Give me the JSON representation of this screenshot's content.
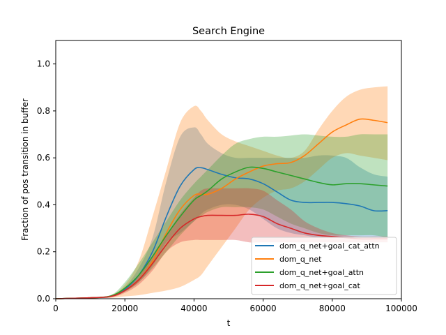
{
  "chart_data": {
    "type": "line",
    "title": "Search Engine",
    "xlabel": "t",
    "ylabel": "Fraction of pos transition in buffer",
    "xlim": [
      0,
      100000
    ],
    "ylim": [
      0,
      1.1
    ],
    "xticks": [
      0,
      20000,
      40000,
      60000,
      80000,
      100000
    ],
    "xtick_labels": [
      "0",
      "20000",
      "40000",
      "60000",
      "80000",
      "100000"
    ],
    "yticks": [
      0.0,
      0.2,
      0.4,
      0.6,
      0.8,
      1.0
    ],
    "ytick_labels": [
      "0.0",
      "0.2",
      "0.4",
      "0.6",
      "0.8",
      "1.0"
    ],
    "grid": false,
    "legend_position": "lower-right",
    "x": [
      0,
      10000,
      16000,
      20000,
      24000,
      28000,
      32000,
      36000,
      40000,
      42000,
      44000,
      48000,
      52000,
      56000,
      60000,
      64000,
      68000,
      72000,
      76000,
      80000,
      84000,
      88000,
      92000,
      96000
    ],
    "series": [
      {
        "name": "dom_q_net+goal_cat_attn",
        "color": "#1f77b4",
        "values": [
          0,
          0.004,
          0.01,
          0.04,
          0.1,
          0.2,
          0.35,
          0.48,
          0.55,
          0.558,
          0.55,
          0.53,
          0.515,
          0.51,
          0.49,
          0.455,
          0.42,
          0.41,
          0.41,
          0.41,
          0.405,
          0.395,
          0.375,
          0.375
        ],
        "lower": [
          0,
          0.002,
          0.006,
          0.03,
          0.07,
          0.14,
          0.24,
          0.28,
          0.33,
          0.36,
          0.38,
          0.4,
          0.4,
          0.38,
          0.34,
          0.3,
          0.28,
          0.27,
          0.26,
          0.26,
          0.26,
          0.26,
          0.26,
          0.26
        ],
        "upper": [
          0,
          0.006,
          0.014,
          0.05,
          0.13,
          0.26,
          0.5,
          0.69,
          0.73,
          0.7,
          0.66,
          0.62,
          0.6,
          0.6,
          0.6,
          0.6,
          0.6,
          0.6,
          0.61,
          0.61,
          0.6,
          0.56,
          0.53,
          0.52
        ]
      },
      {
        "name": "dom_q_net",
        "color": "#ff7f0e",
        "values": [
          0,
          0.004,
          0.01,
          0.035,
          0.08,
          0.16,
          0.28,
          0.38,
          0.44,
          0.445,
          0.445,
          0.47,
          0.51,
          0.54,
          0.565,
          0.575,
          0.58,
          0.61,
          0.66,
          0.71,
          0.74,
          0.765,
          0.76,
          0.75
        ],
        "lower": [
          0,
          0.002,
          0.004,
          0.01,
          0.015,
          0.025,
          0.035,
          0.05,
          0.08,
          0.1,
          0.14,
          0.22,
          0.3,
          0.38,
          0.43,
          0.46,
          0.47,
          0.5,
          0.55,
          0.6,
          0.62,
          0.61,
          0.6,
          0.59
        ],
        "upper": [
          0,
          0.006,
          0.015,
          0.06,
          0.16,
          0.35,
          0.55,
          0.75,
          0.82,
          0.8,
          0.76,
          0.7,
          0.67,
          0.65,
          0.63,
          0.61,
          0.6,
          0.63,
          0.72,
          0.8,
          0.86,
          0.89,
          0.9,
          0.905
        ]
      },
      {
        "name": "dom_q_net+goal_attn",
        "color": "#2ca02c",
        "values": [
          0,
          0.004,
          0.012,
          0.045,
          0.1,
          0.18,
          0.27,
          0.35,
          0.42,
          0.44,
          0.46,
          0.51,
          0.54,
          0.56,
          0.555,
          0.54,
          0.525,
          0.51,
          0.495,
          0.485,
          0.49,
          0.49,
          0.485,
          0.48
        ],
        "lower": [
          0,
          0.002,
          0.008,
          0.03,
          0.07,
          0.13,
          0.2,
          0.27,
          0.33,
          0.35,
          0.37,
          0.39,
          0.39,
          0.39,
          0.38,
          0.35,
          0.32,
          0.3,
          0.28,
          0.27,
          0.27,
          0.27,
          0.27,
          0.26
        ],
        "upper": [
          0,
          0.006,
          0.016,
          0.07,
          0.15,
          0.24,
          0.33,
          0.42,
          0.49,
          0.52,
          0.55,
          0.61,
          0.66,
          0.68,
          0.69,
          0.69,
          0.695,
          0.7,
          0.695,
          0.69,
          0.69,
          0.7,
          0.7,
          0.7
        ]
      },
      {
        "name": "dom_q_net+goal_cat",
        "color": "#d62728",
        "values": [
          0,
          0.004,
          0.01,
          0.035,
          0.08,
          0.15,
          0.23,
          0.3,
          0.34,
          0.35,
          0.355,
          0.355,
          0.355,
          0.36,
          0.35,
          0.32,
          0.3,
          0.28,
          0.27,
          0.265,
          0.26,
          0.255,
          0.255,
          0.255
        ],
        "lower": [
          0,
          0.002,
          0.006,
          0.025,
          0.06,
          0.12,
          0.2,
          0.24,
          0.25,
          0.25,
          0.25,
          0.25,
          0.25,
          0.24,
          0.24,
          0.24,
          0.24,
          0.24,
          0.24,
          0.24,
          0.24,
          0.24,
          0.24,
          0.24
        ],
        "upper": [
          0,
          0.006,
          0.014,
          0.045,
          0.1,
          0.18,
          0.27,
          0.36,
          0.43,
          0.46,
          0.47,
          0.47,
          0.47,
          0.47,
          0.46,
          0.42,
          0.38,
          0.33,
          0.3,
          0.28,
          0.27,
          0.265,
          0.265,
          0.265
        ]
      }
    ]
  }
}
